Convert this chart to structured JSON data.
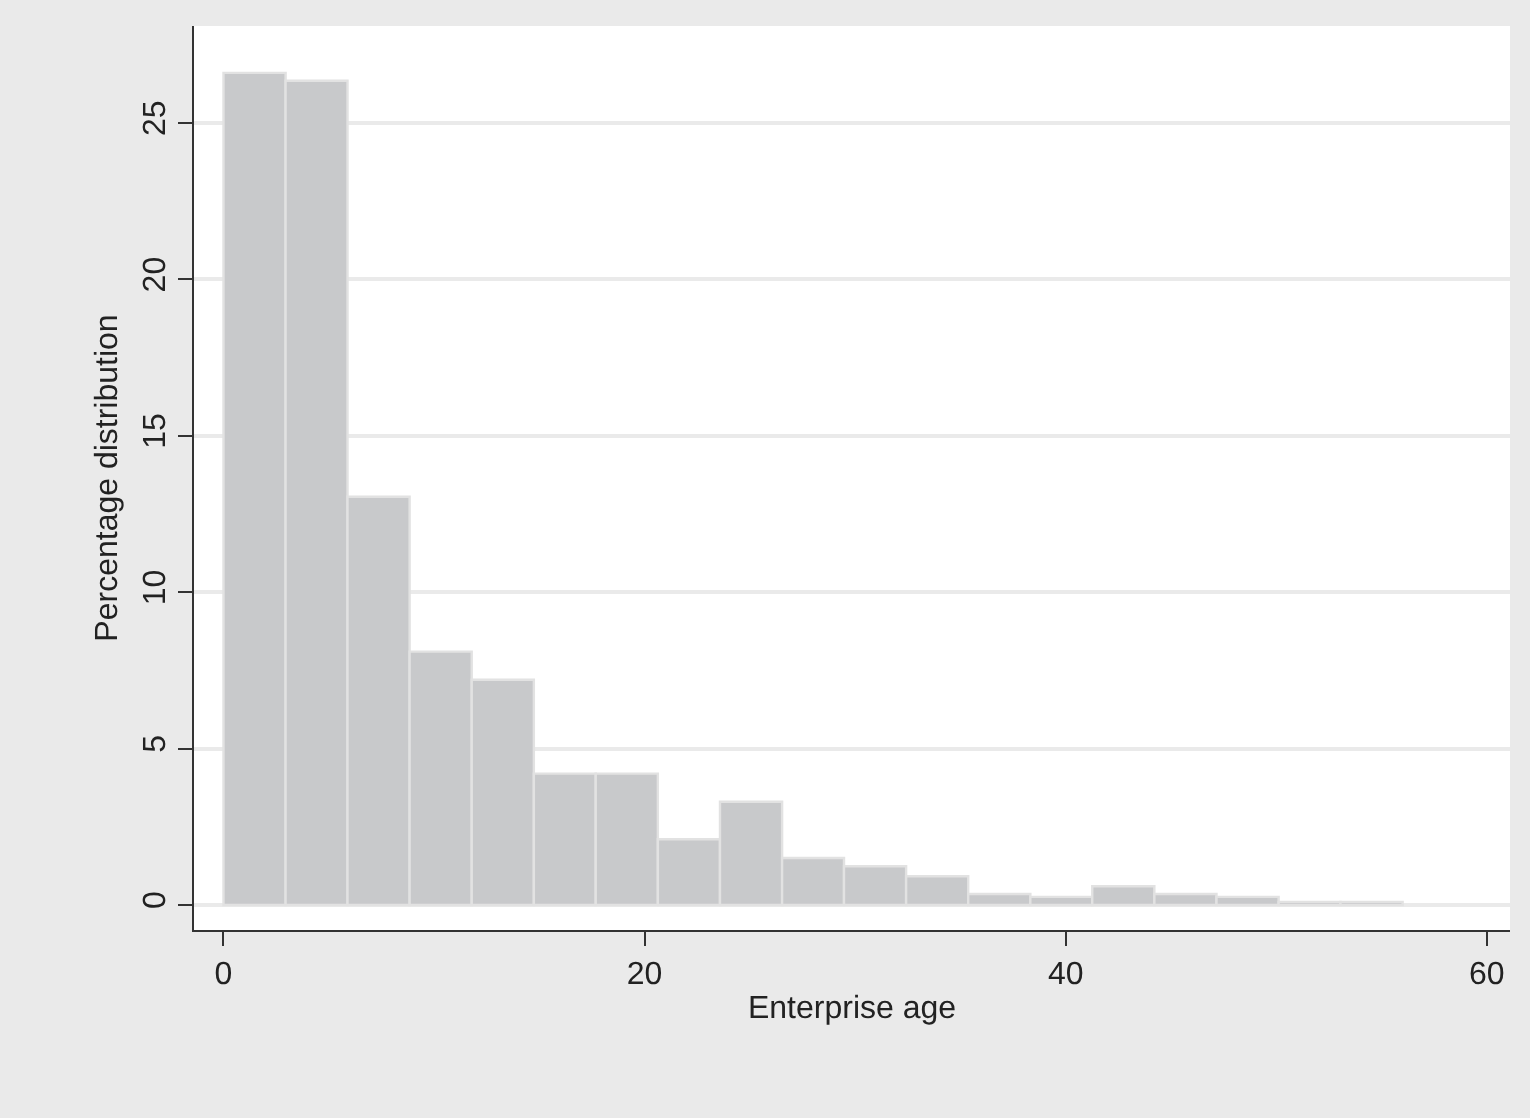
{
  "chart_data": {
    "type": "histogram",
    "xlabel": "Enterprise age",
    "ylabel": "Percentage distribution",
    "bins": [
      0,
      2.95,
      5.89,
      8.84,
      11.79,
      14.74,
      17.68,
      20.63,
      23.58,
      26.53,
      29.47,
      32.42,
      35.37,
      38.32,
      41.26,
      44.21,
      47.16,
      50.11,
      53.05,
      56
    ],
    "values": [
      26.6,
      26.35,
      13.05,
      8.1,
      7.2,
      4.2,
      4.2,
      2.1,
      3.3,
      1.5,
      1.24,
      0.92,
      0.35,
      0.26,
      0.6,
      0.35,
      0.26,
      0.1,
      0.1
    ],
    "color": "#c8c9cb",
    "xlim": [
      -1.4,
      61.1
    ],
    "ylim": [
      -0.8,
      28.1
    ],
    "xticks": [
      0,
      20,
      40,
      60
    ],
    "yticks": [
      0,
      5,
      10,
      15,
      20,
      25
    ],
    "grid": "y"
  }
}
